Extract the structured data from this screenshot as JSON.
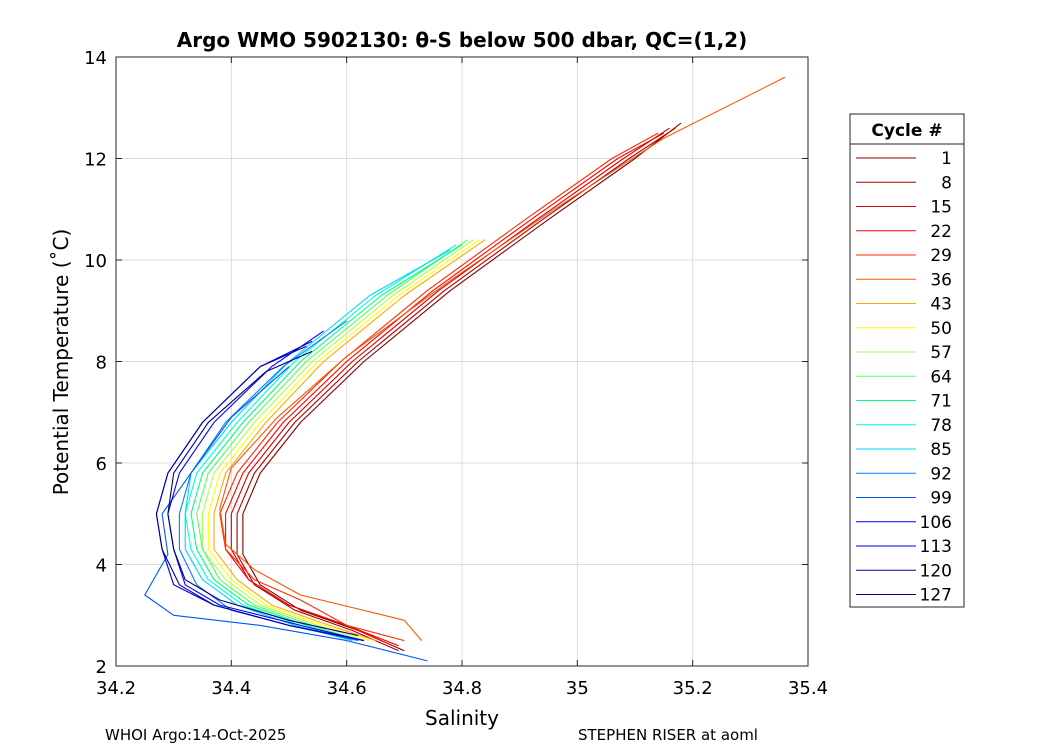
{
  "chart_data": {
    "type": "line",
    "title": "Argo WMO 5902130: θ-S below 500 dbar,  QC=(1,2)",
    "xlabel": "Salinity",
    "ylabel": "Potential Temperature (˚C)",
    "xlim": [
      34.2,
      35.4
    ],
    "ylim": [
      2,
      14
    ],
    "xticks": [
      34.2,
      34.4,
      34.6,
      34.8,
      35,
      35.2,
      35.4
    ],
    "xtick_labels": [
      "34.2",
      "34.4",
      "34.6",
      "34.8",
      "35",
      "35.2",
      "35.4"
    ],
    "yticks": [
      2,
      4,
      6,
      8,
      10,
      12,
      14
    ],
    "ytick_labels": [
      "2",
      "4",
      "6",
      "8",
      "10",
      "12",
      "14"
    ],
    "grid": true,
    "legend_title": "Cycle #",
    "legend_position": "right",
    "colormap": "jet",
    "series": [
      {
        "name": "1",
        "color": "#800000",
        "s": [
          34.7,
          34.62,
          34.52,
          34.45,
          34.42,
          34.42,
          34.45,
          34.52,
          34.63,
          34.78,
          34.95,
          35.1,
          35.18
        ],
        "t": [
          2.3,
          2.7,
          3.1,
          3.6,
          4.2,
          5.0,
          5.8,
          6.8,
          8.0,
          9.4,
          10.8,
          12.0,
          12.7
        ]
      },
      {
        "name": "8",
        "color": "#AA0000",
        "s": [
          34.69,
          34.61,
          34.51,
          34.44,
          34.41,
          34.41,
          34.44,
          34.51,
          34.62,
          34.77,
          34.94,
          35.09,
          35.17
        ],
        "t": [
          2.3,
          2.7,
          3.1,
          3.6,
          4.2,
          5.0,
          5.8,
          6.8,
          8.0,
          9.4,
          10.8,
          12.0,
          12.6
        ]
      },
      {
        "name": "15",
        "color": "#D40000",
        "s": [
          34.69,
          34.6,
          34.5,
          34.43,
          34.4,
          34.4,
          34.43,
          34.5,
          34.61,
          34.76,
          34.93,
          35.08,
          35.16
        ],
        "t": [
          2.4,
          2.8,
          3.2,
          3.7,
          4.3,
          5.0,
          5.8,
          6.8,
          8.0,
          9.4,
          10.8,
          12.0,
          12.6
        ]
      },
      {
        "name": "22",
        "color": "#FF0000",
        "s": [
          34.68,
          34.6,
          34.5,
          34.43,
          34.39,
          34.39,
          34.42,
          34.49,
          34.6,
          34.75,
          34.92,
          35.07,
          35.15
        ],
        "t": [
          2.4,
          2.8,
          3.2,
          3.7,
          4.3,
          5.0,
          5.8,
          6.8,
          8.0,
          9.4,
          10.8,
          12.0,
          12.5
        ]
      },
      {
        "name": "29",
        "color": "#FF2A00",
        "s": [
          34.7,
          34.6,
          34.52,
          34.44,
          34.39,
          34.38,
          34.41,
          34.48,
          34.59,
          34.74,
          34.91,
          35.06,
          35.14
        ],
        "t": [
          2.5,
          2.8,
          3.3,
          3.7,
          4.3,
          5.0,
          5.8,
          6.8,
          8.0,
          9.4,
          10.8,
          12.0,
          12.5
        ]
      },
      {
        "name": "36",
        "color": "#FF5500",
        "s": [
          34.73,
          34.7,
          34.52,
          34.44,
          34.39,
          34.38,
          34.4,
          34.48,
          34.6,
          34.78,
          34.96,
          35.15,
          35.36
        ],
        "t": [
          2.5,
          2.9,
          3.4,
          3.9,
          4.4,
          5.1,
          5.9,
          6.9,
          8.1,
          9.6,
          11.0,
          12.4,
          13.6
        ]
      },
      {
        "name": "43",
        "color": "#FFAA00",
        "s": [
          34.65,
          34.57,
          34.47,
          34.41,
          34.37,
          34.37,
          34.39,
          34.46,
          34.56,
          34.7,
          34.84
        ],
        "t": [
          2.5,
          2.8,
          3.2,
          3.7,
          4.3,
          5.0,
          5.8,
          6.8,
          8.0,
          9.3,
          10.4
        ]
      },
      {
        "name": "50",
        "color": "#FFFF00",
        "s": [
          34.64,
          34.56,
          34.46,
          34.4,
          34.36,
          34.36,
          34.38,
          34.45,
          34.55,
          34.69,
          34.83
        ],
        "t": [
          2.5,
          2.8,
          3.2,
          3.7,
          4.3,
          5.0,
          5.8,
          6.8,
          8.0,
          9.3,
          10.4
        ]
      },
      {
        "name": "57",
        "color": "#AAFF55",
        "s": [
          34.63,
          34.55,
          34.45,
          34.39,
          34.35,
          34.35,
          34.37,
          34.44,
          34.54,
          34.68,
          34.82
        ],
        "t": [
          2.5,
          2.8,
          3.2,
          3.7,
          4.3,
          5.0,
          5.8,
          6.8,
          8.0,
          9.3,
          10.4
        ]
      },
      {
        "name": "64",
        "color": "#55FF55",
        "s": [
          34.62,
          34.54,
          34.44,
          34.38,
          34.35,
          34.34,
          34.36,
          34.43,
          34.53,
          34.67,
          34.81
        ],
        "t": [
          2.5,
          2.8,
          3.2,
          3.7,
          4.3,
          5.0,
          5.8,
          6.8,
          8.0,
          9.3,
          10.4
        ]
      },
      {
        "name": "71",
        "color": "#00FF80",
        "s": [
          34.62,
          34.53,
          34.43,
          34.37,
          34.34,
          34.33,
          34.35,
          34.42,
          34.52,
          34.66,
          34.8
        ],
        "t": [
          2.5,
          2.8,
          3.2,
          3.7,
          4.3,
          5.0,
          5.8,
          6.8,
          8.0,
          9.3,
          10.3
        ]
      },
      {
        "name": "78",
        "color": "#00FFD5",
        "s": [
          34.61,
          34.52,
          34.42,
          34.36,
          34.33,
          34.32,
          34.34,
          34.41,
          34.51,
          34.65,
          34.79
        ],
        "t": [
          2.5,
          2.8,
          3.2,
          3.7,
          4.3,
          5.0,
          5.8,
          6.8,
          8.0,
          9.3,
          10.3
        ]
      },
      {
        "name": "85",
        "color": "#00D5FF",
        "s": [
          34.61,
          34.51,
          34.41,
          34.35,
          34.32,
          34.32,
          34.33,
          34.4,
          34.5,
          34.64,
          34.78
        ],
        "t": [
          2.5,
          2.8,
          3.2,
          3.7,
          4.3,
          5.0,
          5.8,
          6.8,
          8.0,
          9.3,
          10.2
        ]
      },
      {
        "name": "92",
        "color": "#0080FF",
        "s": [
          34.62,
          34.5,
          34.4,
          34.34,
          34.31,
          34.31,
          34.33,
          34.39,
          34.49,
          34.6
        ],
        "t": [
          2.5,
          2.8,
          3.1,
          3.6,
          4.3,
          5.0,
          5.8,
          6.8,
          7.9,
          8.8
        ]
      },
      {
        "name": "99",
        "color": "#0055FF",
        "s": [
          34.74,
          34.6,
          34.45,
          34.3,
          34.25,
          34.29,
          34.28,
          34.33,
          34.4,
          34.5
        ],
        "t": [
          2.1,
          2.5,
          2.8,
          3.0,
          3.4,
          4.2,
          5.0,
          5.8,
          6.9,
          7.9
        ]
      },
      {
        "name": "106",
        "color": "#0000FF",
        "s": [
          34.63,
          34.52,
          34.38,
          34.32,
          34.3,
          34.29,
          34.31,
          34.37,
          34.47,
          34.56
        ],
        "t": [
          2.5,
          2.8,
          3.2,
          3.6,
          4.3,
          5.0,
          5.8,
          6.8,
          7.9,
          8.6
        ]
      },
      {
        "name": "113",
        "color": "#0000D4",
        "s": [
          34.63,
          34.5,
          34.37,
          34.3,
          34.28,
          34.27,
          34.29,
          34.35,
          34.45,
          34.54
        ],
        "t": [
          2.5,
          2.8,
          3.2,
          3.6,
          4.3,
          5.0,
          5.8,
          6.8,
          7.9,
          8.4
        ]
      },
      {
        "name": "120",
        "color": "#0000AA",
        "s": [
          34.63,
          34.5,
          34.37,
          34.31,
          34.28,
          34.27,
          34.29,
          34.35,
          34.45,
          34.53
        ],
        "t": [
          2.5,
          2.8,
          3.2,
          3.6,
          4.3,
          5.0,
          5.8,
          6.8,
          7.9,
          8.3
        ]
      },
      {
        "name": "127",
        "color": "#000080",
        "s": [
          34.62,
          34.5,
          34.38,
          34.32,
          34.3,
          34.29,
          34.3,
          34.36,
          34.46,
          34.54
        ],
        "t": [
          2.6,
          2.9,
          3.3,
          3.7,
          4.3,
          5.0,
          5.8,
          6.8,
          7.8,
          8.2
        ]
      }
    ]
  },
  "footer": {
    "left": "WHOI Argo:14-Oct-2025",
    "right": "STEPHEN RISER at aoml"
  }
}
